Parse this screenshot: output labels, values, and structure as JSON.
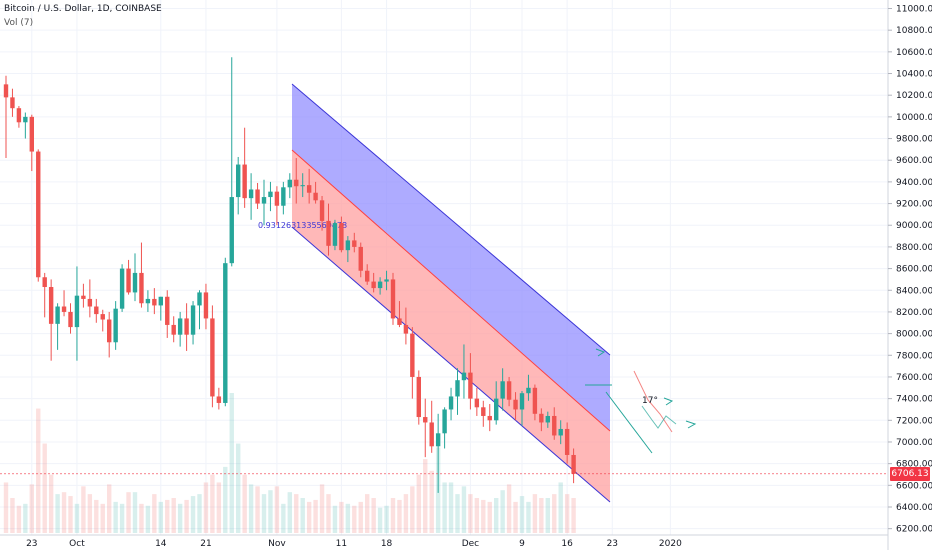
{
  "header": {
    "title": "Bitcoin / U.S. Dollar, 1D, COINBASE",
    "volume_label": "Vol (7)"
  },
  "last_price_label": "6706.13",
  "fib_label": "0.9312631335569478",
  "annotation_label": "17°",
  "chart_data": {
    "type": "candlestick",
    "y_ticks": [
      6200,
      6400,
      6600,
      6800,
      7000,
      7200,
      7400,
      7600,
      7800,
      8000,
      8200,
      8400,
      8600,
      8800,
      9000,
      9200,
      9400,
      9600,
      9800,
      10000,
      10200,
      10400,
      10600,
      10800,
      11000
    ],
    "ylim": [
      6160,
      11060
    ],
    "x_tick_labels": [
      {
        "label": "23",
        "index": 4
      },
      {
        "label": "Oct",
        "index": 11
      },
      {
        "label": "14",
        "index": 24
      },
      {
        "label": "21",
        "index": 31
      },
      {
        "label": "Nov",
        "index": 42
      },
      {
        "label": "11",
        "index": 52
      },
      {
        "label": "18",
        "index": 59
      },
      {
        "label": "Dec",
        "index": 72
      },
      {
        "label": "9",
        "index": 80
      },
      {
        "label": "16",
        "index": 87
      },
      {
        "label": "23",
        "index": 94
      },
      {
        "label": "2020",
        "index": 103
      }
    ],
    "candles": [
      [
        10300,
        10380,
        9620,
        10180
      ],
      [
        10180,
        10260,
        10000,
        10080
      ],
      [
        10080,
        10100,
        9900,
        9950
      ],
      [
        9950,
        10040,
        9800,
        10000
      ],
      [
        10000,
        10020,
        9500,
        9680
      ],
      [
        9680,
        9700,
        8480,
        8520
      ],
      [
        8520,
        8560,
        8150,
        8430
      ],
      [
        8430,
        8500,
        7750,
        8090
      ],
      [
        8090,
        8280,
        7850,
        8250
      ],
      [
        8250,
        8400,
        8160,
        8200
      ],
      [
        8200,
        8280,
        8000,
        8060
      ],
      [
        8060,
        8620,
        7750,
        8350
      ],
      [
        8350,
        8460,
        8240,
        8320
      ],
      [
        8320,
        8500,
        8150,
        8250
      ],
      [
        8250,
        8320,
        8100,
        8180
      ],
      [
        8180,
        8220,
        8020,
        8130
      ],
      [
        8130,
        8200,
        7780,
        7920
      ],
      [
        7920,
        8300,
        7850,
        8230
      ],
      [
        8230,
        8640,
        8200,
        8600
      ],
      [
        8600,
        8680,
        8360,
        8380
      ],
      [
        8380,
        8740,
        8300,
        8560
      ],
      [
        8560,
        8840,
        8240,
        8280
      ],
      [
        8280,
        8400,
        8200,
        8320
      ],
      [
        8320,
        8420,
        8180,
        8260
      ],
      [
        8260,
        8340,
        8120,
        8340
      ],
      [
        8340,
        8400,
        7960,
        8080
      ],
      [
        8080,
        8160,
        7920,
        7990
      ],
      [
        7990,
        8200,
        7880,
        8140
      ],
      [
        8140,
        8280,
        7840,
        7990
      ],
      [
        7990,
        8300,
        7900,
        8260
      ],
      [
        8260,
        8400,
        8040,
        8380
      ],
      [
        8380,
        8460,
        8040,
        8140
      ],
      [
        8140,
        8260,
        7320,
        7420
      ],
      [
        7420,
        7500,
        7300,
        7360
      ],
      [
        7360,
        8700,
        7330,
        8650
      ],
      [
        8650,
        10550,
        8620,
        9260
      ],
      [
        9260,
        9630,
        9100,
        9560
      ],
      [
        9560,
        9900,
        9160,
        9250
      ],
      [
        9250,
        9480,
        9050,
        9330
      ],
      [
        9330,
        9390,
        9150,
        9200
      ],
      [
        9200,
        9420,
        9000,
        9260
      ],
      [
        9260,
        9400,
        9130,
        9310
      ],
      [
        9310,
        9360,
        9000,
        9180
      ],
      [
        9180,
        9400,
        9100,
        9350
      ],
      [
        9350,
        9480,
        9250,
        9420
      ],
      [
        9420,
        9620,
        9200,
        9360
      ],
      [
        9360,
        9480,
        9260,
        9370
      ],
      [
        9370,
        9520,
        9200,
        9300
      ],
      [
        9300,
        9400,
        9200,
        9230
      ],
      [
        9230,
        9270,
        8950,
        9040
      ],
      [
        9040,
        9200,
        8720,
        8810
      ],
      [
        8810,
        9050,
        8770,
        9020
      ],
      [
        9020,
        9080,
        8750,
        8770
      ],
      [
        8770,
        8900,
        8660,
        8860
      ],
      [
        8860,
        8930,
        8750,
        8800
      ],
      [
        8800,
        8840,
        8520,
        8580
      ],
      [
        8580,
        8640,
        8450,
        8480
      ],
      [
        8480,
        8560,
        8380,
        8420
      ],
      [
        8420,
        8520,
        8360,
        8480
      ],
      [
        8480,
        8580,
        8400,
        8500
      ],
      [
        8500,
        8560,
        8080,
        8140
      ],
      [
        8140,
        8300,
        8060,
        8080
      ],
      [
        8080,
        8240,
        7900,
        8000
      ],
      [
        8000,
        8060,
        7400,
        7600
      ],
      [
        7600,
        7660,
        7160,
        7230
      ],
      [
        7230,
        7400,
        6860,
        7180
      ],
      [
        7180,
        7380,
        6900,
        6960
      ],
      [
        6960,
        7260,
        6530,
        7080
      ],
      [
        7080,
        7320,
        6940,
        7300
      ],
      [
        7300,
        7500,
        7200,
        7420
      ],
      [
        7420,
        7680,
        7250,
        7570
      ],
      [
        7570,
        7900,
        7400,
        7640
      ],
      [
        7640,
        7820,
        7300,
        7400
      ],
      [
        7400,
        7500,
        7240,
        7320
      ],
      [
        7320,
        7380,
        7140,
        7240
      ],
      [
        7240,
        7350,
        7100,
        7200
      ],
      [
        7200,
        7560,
        7160,
        7400
      ],
      [
        7400,
        7680,
        7290,
        7560
      ],
      [
        7560,
        7600,
        7330,
        7390
      ],
      [
        7390,
        7460,
        7200,
        7300
      ],
      [
        7300,
        7470,
        7150,
        7450
      ],
      [
        7450,
        7620,
        7380,
        7500
      ],
      [
        7500,
        7530,
        7200,
        7260
      ],
      [
        7260,
        7310,
        7100,
        7180
      ],
      [
        7180,
        7280,
        7130,
        7240
      ],
      [
        7240,
        7320,
        7020,
        7060
      ],
      [
        7060,
        7200,
        6980,
        7120
      ],
      [
        7120,
        7180,
        6800,
        6880
      ],
      [
        6880,
        6940,
        6620,
        6706
      ]
    ],
    "volumes": [
      260,
      180,
      140,
      150,
      250,
      640,
      460,
      300,
      200,
      210,
      190,
      150,
      240,
      200,
      170,
      150,
      250,
      160,
      150,
      210,
      210,
      150,
      140,
      200,
      160,
      170,
      180,
      150,
      170,
      190,
      200,
      260,
      300,
      260,
      340,
      720,
      460,
      300,
      250,
      240,
      200,
      220,
      240,
      150,
      210,
      200,
      180,
      160,
      170,
      250,
      200,
      140,
      160,
      150,
      140,
      160,
      200,
      180,
      130,
      140,
      180,
      170,
      200,
      240,
      300,
      380,
      320,
      440,
      260,
      260,
      200,
      240,
      200,
      180,
      170,
      160,
      180,
      220,
      250,
      160,
      190,
      160,
      200,
      180,
      180,
      200,
      260,
      200,
      180
    ]
  }
}
